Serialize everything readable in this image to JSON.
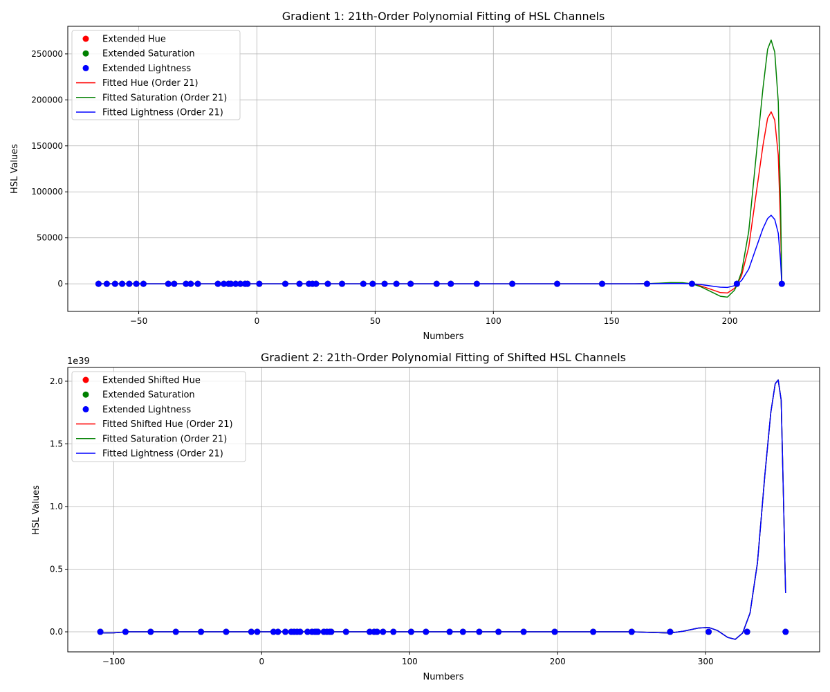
{
  "chart_data": [
    {
      "type": "line",
      "title": "Gradient 1: 21th-Order Polynomial Fitting of HSL Channels",
      "xlabel": "Numbers",
      "ylabel": "HSL Values",
      "xlim": [
        -80,
        238
      ],
      "ylim": [
        -30000,
        280000
      ],
      "xticks": [
        -50,
        0,
        50,
        100,
        150,
        200
      ],
      "yticks": [
        0,
        50000,
        100000,
        150000,
        200000,
        250000
      ],
      "xtick_labels": [
        "−50",
        "0",
        "50",
        "100",
        "150",
        "200"
      ],
      "ytick_labels": [
        "0",
        "50000",
        "100000",
        "150000",
        "200000",
        "250000"
      ],
      "offset_label": "",
      "grid": true,
      "legend_position": "upper-left",
      "points_x": [
        -67,
        -63.5,
        -60,
        -57,
        -54,
        -51,
        -48,
        -37.5,
        -35,
        -30,
        -28,
        -25,
        -16.5,
        -14,
        -12,
        -11,
        -9,
        -7,
        -5,
        -4,
        1,
        12,
        18,
        22,
        23.5,
        25,
        30,
        36,
        45,
        49,
        54,
        59,
        65,
        76,
        82,
        93,
        108,
        127,
        146,
        165,
        184,
        203,
        222
      ],
      "points": [
        {
          "name": "Extended Hue",
          "color": "#ff0000"
        },
        {
          "name": "Extended Saturation",
          "color": "#008000"
        },
        {
          "name": "Extended Lightness",
          "color": "#0000ff"
        }
      ],
      "curves": [
        {
          "name": "Fitted Hue (Order 21)",
          "color": "#ff0000",
          "x": [
            -67,
            150,
            160,
            165,
            170,
            175,
            180,
            184,
            188,
            192,
            196,
            199,
            202,
            203,
            205,
            208,
            211,
            214,
            216,
            217.5,
            219,
            220.5,
            221.5,
            222
          ],
          "y": [
            0,
            0,
            0,
            150,
            500,
            900,
            800,
            0,
            -2500,
            -6000,
            -9500,
            -10000,
            -5000,
            -1000,
            9000,
            40000,
            95000,
            150000,
            180000,
            187000,
            178000,
            140000,
            60000,
            0
          ]
        },
        {
          "name": "Fitted Saturation (Order 21)",
          "color": "#008000",
          "x": [
            -67,
            150,
            160,
            165,
            170,
            175,
            180,
            184,
            188,
            192,
            196,
            199,
            202,
            203,
            205,
            208,
            211,
            214,
            216,
            217.5,
            219,
            220.5,
            221.5,
            222
          ],
          "y": [
            0,
            0,
            0,
            200,
            700,
            1300,
            1200,
            0,
            -3500,
            -8500,
            -13500,
            -14500,
            -7000,
            -1500,
            13000,
            57000,
            135000,
            212000,
            255000,
            265000,
            252000,
            198000,
            85000,
            0
          ]
        },
        {
          "name": "Fitted Lightness (Order 21)",
          "color": "#0000ff",
          "x": [
            -67,
            150,
            160,
            165,
            170,
            175,
            180,
            184,
            188,
            192,
            196,
            199,
            202,
            203,
            205,
            208,
            211,
            214,
            216,
            217.5,
            219,
            220.5,
            221.5,
            222
          ],
          "y": [
            0,
            0,
            0,
            60,
            200,
            350,
            300,
            0,
            -900,
            -2300,
            -3700,
            -4000,
            -2000,
            -400,
            3600,
            16000,
            38000,
            60000,
            71000,
            74500,
            70000,
            55000,
            24000,
            0
          ]
        }
      ]
    },
    {
      "type": "line",
      "title": "Gradient 2: 21th-Order Polynomial Fitting of Shifted HSL Channels",
      "xlabel": "Numbers",
      "ylabel": "HSL Values",
      "xlim": [
        -131,
        377
      ],
      "ylim": [
        -0.16,
        2.11
      ],
      "xticks": [
        -100,
        0,
        100,
        200,
        300
      ],
      "yticks": [
        0.0,
        0.5,
        1.0,
        1.5,
        2.0
      ],
      "xtick_labels": [
        "−100",
        "0",
        "100",
        "200",
        "300"
      ],
      "ytick_labels": [
        "0.0",
        "0.5",
        "1.0",
        "1.5",
        "2.0"
      ],
      "offset_label": "1e39",
      "grid": true,
      "legend_position": "upper-left",
      "points_x": [
        -109,
        -92,
        -75,
        -58,
        -41,
        -24,
        -7,
        -3,
        8,
        11,
        16,
        20,
        22,
        24,
        26,
        31,
        34,
        36,
        37,
        38,
        42,
        44,
        46,
        47,
        57,
        73,
        76,
        78,
        82,
        89,
        101,
        111,
        127,
        136,
        147,
        160,
        177,
        198,
        224,
        250,
        276,
        302,
        328,
        354
      ],
      "points": [
        {
          "name": "Extended Shifted Hue",
          "color": "#ff0000"
        },
        {
          "name": "Extended Saturation",
          "color": "#008000"
        },
        {
          "name": "Extended Lightness",
          "color": "#0000ff"
        }
      ],
      "curves": [
        {
          "name": "Fitted Shifted Hue (Order 21)",
          "color": "#ff0000",
          "x": [
            -109,
            -100,
            -90,
            0,
            250,
            262,
            276,
            285,
            295,
            302,
            308,
            315,
            320,
            325,
            330,
            335,
            340,
            344,
            347,
            349,
            351,
            352.5,
            354
          ],
          "y": [
            -0.01,
            -0.008,
            0,
            0,
            0,
            -0.005,
            -0.01,
            0.005,
            0.03,
            0.035,
            0.01,
            -0.045,
            -0.06,
            -0.01,
            0.15,
            0.55,
            1.25,
            1.75,
            1.98,
            2.01,
            1.85,
            1.1,
            0.31
          ]
        },
        {
          "name": "Fitted Saturation (Order 21)",
          "color": "#008000",
          "x": [
            -109,
            -100,
            -90,
            0,
            250,
            262,
            276,
            285,
            295,
            302,
            308,
            315,
            320,
            325,
            330,
            335,
            340,
            344,
            347,
            349,
            351,
            352.5,
            354
          ],
          "y": [
            -0.01,
            -0.008,
            0,
            0,
            0,
            -0.005,
            -0.01,
            0.005,
            0.03,
            0.035,
            0.01,
            -0.045,
            -0.06,
            -0.01,
            0.15,
            0.55,
            1.25,
            1.75,
            1.98,
            2.01,
            1.85,
            1.1,
            0.31
          ]
        },
        {
          "name": "Fitted Lightness (Order 21)",
          "color": "#0000ff",
          "x": [
            -109,
            -100,
            -90,
            0,
            250,
            262,
            276,
            285,
            295,
            302,
            308,
            315,
            320,
            325,
            330,
            335,
            340,
            344,
            347,
            349,
            351,
            352.5,
            354
          ],
          "y": [
            -0.01,
            -0.008,
            0,
            0,
            0,
            -0.005,
            -0.01,
            0.005,
            0.03,
            0.035,
            0.01,
            -0.045,
            -0.06,
            -0.01,
            0.15,
            0.55,
            1.25,
            1.75,
            1.98,
            2.01,
            1.85,
            1.1,
            0.31
          ]
        }
      ]
    }
  ]
}
